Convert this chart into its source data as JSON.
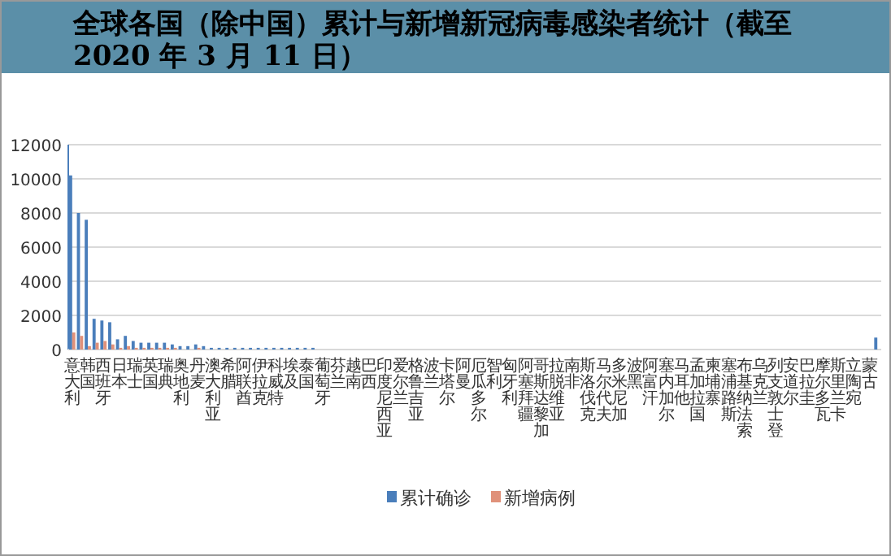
{
  "chart_data": {
    "type": "bar",
    "title": "全球各国（除中国）累计与新增新冠病毒感染者统计（截至 2020 年 3 月 11 日）",
    "categories": [
      "意大利",
      null,
      "韩国",
      null,
      "西班牙",
      null,
      "日本",
      null,
      "瑞士",
      null,
      "英国",
      null,
      "瑞典",
      null,
      "奥地利",
      null,
      "丹麦",
      null,
      "澳大利亚",
      null,
      "希腊",
      null,
      "阿联酋",
      null,
      "伊拉克",
      null,
      "科威特",
      null,
      "埃及",
      null,
      "泰国",
      null,
      "葡萄牙",
      null,
      "芬兰",
      null,
      "越南",
      null,
      "巴西",
      null,
      "印度尼西亚",
      null,
      "爱尔兰",
      null,
      "格鲁吉亚",
      null,
      "波兰",
      null,
      "卡塔尔",
      null,
      "阿曼",
      null,
      "厄瓜多尔",
      null,
      "智利",
      null,
      "匈牙利",
      null,
      "阿塞拜疆",
      null,
      "哥斯达黎加",
      null,
      "拉脱维亚",
      null,
      "南非",
      null,
      "斯洛伐克",
      null,
      "马尔代夫",
      null,
      "多米尼加",
      null,
      "波黑",
      null,
      "阿富汗",
      null,
      "塞内加尔",
      null,
      "马耳他",
      null,
      "孟加拉国",
      null,
      "柬埔寨",
      null,
      "塞浦路斯",
      null,
      "布基纳法索",
      null,
      "乌克兰",
      null,
      "列支敦士登",
      null,
      "安道尔",
      null,
      "巴拉圭",
      null,
      "摩尔多瓦",
      null,
      "斯里兰卡",
      null,
      "立陶宛",
      null,
      "蒙古",
      null
    ],
    "series": [
      {
        "name": "累计确诊",
        "color": "#4a7ebb",
        "values": [
          10200,
          8000,
          7600,
          1800,
          1700,
          1600,
          600,
          800,
          500,
          400,
          400,
          400,
          400,
          300,
          200,
          200,
          300,
          200,
          100,
          100,
          100,
          100,
          100,
          100,
          100,
          100,
          100,
          100,
          100,
          100,
          100,
          100,
          0,
          0,
          0,
          0,
          0,
          0,
          0,
          0,
          0,
          0,
          0,
          0,
          0,
          0,
          0,
          0,
          0,
          0,
          0,
          0,
          0,
          0,
          0,
          0,
          0,
          0,
          0,
          0,
          0,
          0,
          0,
          0,
          0,
          0,
          0,
          0,
          0,
          0,
          0,
          0,
          0,
          0,
          0,
          0,
          0,
          0,
          0,
          0,
          0,
          0,
          0,
          0,
          0,
          0,
          0,
          0,
          0,
          0,
          0,
          0,
          0,
          0,
          0,
          0,
          0,
          0,
          0,
          0,
          0,
          0,
          0,
          700
        ]
      },
      {
        "name": "新增病例",
        "color": "#e0917a",
        "values": [
          1000,
          800,
          200,
          400,
          500,
          300,
          100,
          200,
          100,
          100,
          100,
          100,
          100,
          100,
          0,
          0,
          100,
          0,
          0,
          0,
          0,
          0,
          0,
          0,
          0,
          0,
          0,
          0,
          0,
          0,
          0,
          0,
          0,
          0,
          0,
          0,
          0,
          0,
          0,
          0,
          0,
          0,
          0,
          0,
          0,
          0,
          0,
          0,
          0,
          0,
          0,
          0,
          0,
          0,
          0,
          0,
          0,
          0,
          0,
          0,
          0,
          0,
          0,
          0,
          0,
          0,
          0,
          0,
          0,
          0,
          0,
          0,
          0,
          0,
          0,
          0,
          0,
          0,
          0,
          0,
          0,
          0,
          0,
          0,
          0,
          0,
          0,
          0,
          0,
          0,
          0,
          0,
          0,
          0,
          0,
          0,
          0,
          0,
          0,
          0,
          0,
          0,
          0,
          0
        ]
      }
    ],
    "ylim": [
      0,
      12000
    ],
    "yticks": [
      0,
      2000,
      4000,
      6000,
      8000,
      10000,
      12000
    ],
    "grid": "y",
    "legend": "bottom"
  }
}
